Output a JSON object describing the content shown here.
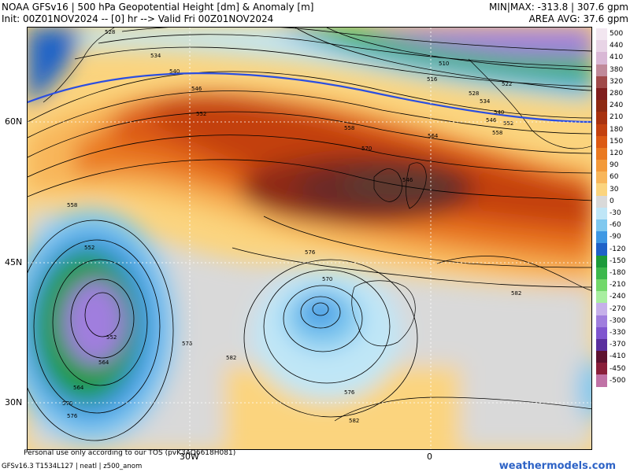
{
  "header": {
    "line1": "NOAA GFSv16 | 500 hPa Geopotential Height [dm] & Anomaly [m]",
    "line2": "Init: 00Z01NOV2024 -- [0] hr --> Valid Fri 00Z01NOV2024",
    "minmax": "MIN|MAX: -313.8 | 307.6 gpm",
    "area_avg": "AREA AVG: 37.6 gpm"
  },
  "axes": {
    "lat_labels": [
      "60N",
      "45N",
      "30N"
    ],
    "lon_labels": [
      "30W",
      "0"
    ]
  },
  "colorbar": {
    "labels": [
      "500",
      "440",
      "410",
      "380",
      "320",
      "280",
      "240",
      "210",
      "180",
      "150",
      "120",
      "90",
      "60",
      "30",
      "0",
      "-30",
      "-60",
      "-90",
      "-120",
      "-150",
      "-180",
      "-210",
      "-240",
      "-270",
      "-300",
      "-330",
      "-370",
      "-410",
      "-450",
      "-500"
    ],
    "colors": [
      "#f2e6f0",
      "#e8d4e6",
      "#d9b8d6",
      "#c08a9a",
      "#a04a4a",
      "#7f1d1d",
      "#8e2a12",
      "#a8320f",
      "#c3410f",
      "#dc5a14",
      "#ea7a22",
      "#f39a3a",
      "#f8b65a",
      "#fbd47e",
      "#d9d9d9",
      "#bfe6f7",
      "#7fc8ef",
      "#3e98e4",
      "#1f62c8",
      "#1c9a3a",
      "#3cb84c",
      "#72d86a",
      "#a8eea0",
      "#c6b0ea",
      "#a07ede",
      "#7f55cf",
      "#5a2f9e",
      "#5e1230",
      "#8a1f3a",
      "#c072a6"
    ]
  },
  "map": {
    "contour_labels": [
      "528",
      "534",
      "540",
      "546",
      "552",
      "558",
      "564",
      "570",
      "576",
      "582",
      "558",
      "552",
      "546",
      "570",
      "576",
      "582",
      "576",
      "564",
      "552",
      "570",
      "564",
      "576",
      "582",
      "516",
      "522",
      "528",
      "534",
      "540",
      "546",
      "552",
      "558",
      "510"
    ]
  },
  "footer": {
    "model_info": "GFSv16.3 T1534L127 | neatl | z500_anom",
    "disclaimer": "Personal use only according to our TOS (pvK3AQ6618H081)",
    "brand": "weathermodels.com"
  }
}
